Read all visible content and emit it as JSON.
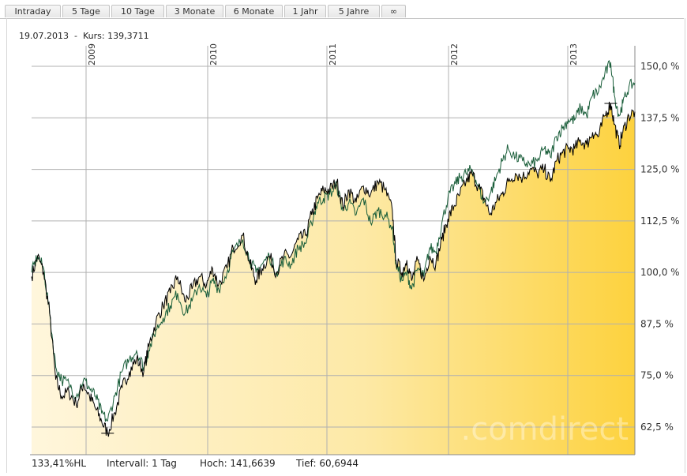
{
  "tabs": [
    {
      "label": "Intraday"
    },
    {
      "label": "5 Tage"
    },
    {
      "label": "10 Tage"
    },
    {
      "label": "3 Monate"
    },
    {
      "label": "6 Monate"
    },
    {
      "label": "1 Jahr"
    },
    {
      "label": "5 Jahre"
    },
    {
      "label": "∞"
    }
  ],
  "header": {
    "date": "19.07.2013",
    "separator": "-",
    "kurs_label": "Kurs:",
    "kurs_value": "139,3711"
  },
  "footer": {
    "hl": "133,41%HL",
    "interval": "Intervall: 1 Tag",
    "hoch": "Hoch: 141,6639",
    "tief": "Tief: 60,6944"
  },
  "watermark": ".comdirect",
  "colors": {
    "main_line": "#000000",
    "compare_line": "#1a5e3a",
    "fill_light": "#fff6dc",
    "fill_dark": "#fdd23e",
    "grid": "#b0b0b0"
  },
  "chart_data": {
    "type": "area",
    "x_axis_labels": [
      "2009",
      "2010",
      "2011",
      "2012",
      "2013"
    ],
    "y_axis_labels": [
      "62,5 %",
      "75,0 %",
      "87,5 %",
      "100,0 %",
      "112,5 %",
      "125,0 %",
      "137,5 %",
      "150,0 %"
    ],
    "ylim": [
      57,
      153
    ],
    "xlim": [
      2008.55,
      2013.55
    ],
    "y_unit": "%",
    "series": [
      {
        "role": "main",
        "points": [
          [
            2008.55,
            99
          ],
          [
            2008.6,
            104
          ],
          [
            2008.65,
            100
          ],
          [
            2008.7,
            90
          ],
          [
            2008.75,
            74
          ],
          [
            2008.8,
            70
          ],
          [
            2008.86,
            71
          ],
          [
            2008.92,
            68
          ],
          [
            2008.98,
            73
          ],
          [
            2009.03,
            70
          ],
          [
            2009.08,
            67
          ],
          [
            2009.13,
            64
          ],
          [
            2009.18,
            61
          ],
          [
            2009.24,
            66
          ],
          [
            2009.3,
            72
          ],
          [
            2009.36,
            76
          ],
          [
            2009.42,
            79
          ],
          [
            2009.48,
            76
          ],
          [
            2009.52,
            82
          ],
          [
            2009.58,
            88
          ],
          [
            2009.64,
            92
          ],
          [
            2009.7,
            95
          ],
          [
            2009.76,
            99
          ],
          [
            2009.82,
            93
          ],
          [
            2009.88,
            96
          ],
          [
            2009.94,
            99
          ],
          [
            2010.0,
            97
          ],
          [
            2010.05,
            101
          ],
          [
            2010.1,
            97
          ],
          [
            2010.17,
            101
          ],
          [
            2010.22,
            106
          ],
          [
            2010.3,
            109
          ],
          [
            2010.36,
            102
          ],
          [
            2010.41,
            98
          ],
          [
            2010.46,
            101
          ],
          [
            2010.52,
            104
          ],
          [
            2010.58,
            100
          ],
          [
            2010.64,
            104
          ],
          [
            2010.7,
            104
          ],
          [
            2010.76,
            108
          ],
          [
            2010.82,
            109
          ],
          [
            2010.87,
            114
          ],
          [
            2010.92,
            118
          ],
          [
            2010.97,
            120
          ],
          [
            2011.02,
            120
          ],
          [
            2011.08,
            122
          ],
          [
            2011.13,
            116
          ],
          [
            2011.18,
            120
          ],
          [
            2011.24,
            117
          ],
          [
            2011.3,
            121
          ],
          [
            2011.36,
            119
          ],
          [
            2011.42,
            122
          ],
          [
            2011.48,
            120
          ],
          [
            2011.54,
            115
          ],
          [
            2011.57,
            103
          ],
          [
            2011.62,
            100
          ],
          [
            2011.66,
            103
          ],
          [
            2011.7,
            98
          ],
          [
            2011.75,
            103
          ],
          [
            2011.8,
            98
          ],
          [
            2011.85,
            104
          ],
          [
            2011.9,
            102
          ],
          [
            2011.95,
            108
          ],
          [
            2012.0,
            113
          ],
          [
            2012.05,
            116
          ],
          [
            2012.1,
            119
          ],
          [
            2012.15,
            122
          ],
          [
            2012.2,
            124
          ],
          [
            2012.25,
            121
          ],
          [
            2012.3,
            118
          ],
          [
            2012.35,
            114
          ],
          [
            2012.4,
            117
          ],
          [
            2012.45,
            119
          ],
          [
            2012.5,
            122
          ],
          [
            2012.56,
            124
          ],
          [
            2012.62,
            123
          ],
          [
            2012.68,
            125
          ],
          [
            2012.74,
            124
          ],
          [
            2012.8,
            125
          ],
          [
            2012.85,
            122
          ],
          [
            2012.9,
            127
          ],
          [
            2012.95,
            129
          ],
          [
            2013.0,
            130
          ],
          [
            2013.05,
            130
          ],
          [
            2013.1,
            132
          ],
          [
            2013.15,
            131
          ],
          [
            2013.2,
            134
          ],
          [
            2013.25,
            133
          ],
          [
            2013.3,
            138
          ],
          [
            2013.35,
            141
          ],
          [
            2013.38,
            136
          ],
          [
            2013.42,
            131
          ],
          [
            2013.45,
            134
          ],
          [
            2013.5,
            138
          ],
          [
            2013.55,
            139
          ]
        ]
      },
      {
        "role": "comparison",
        "points": [
          [
            2008.55,
            100
          ],
          [
            2008.6,
            104
          ],
          [
            2008.65,
            101
          ],
          [
            2008.7,
            90
          ],
          [
            2008.75,
            77
          ],
          [
            2008.8,
            74
          ],
          [
            2008.86,
            73
          ],
          [
            2008.92,
            70
          ],
          [
            2008.98,
            74
          ],
          [
            2009.03,
            72
          ],
          [
            2009.08,
            70
          ],
          [
            2009.13,
            66
          ],
          [
            2009.18,
            64
          ],
          [
            2009.24,
            70
          ],
          [
            2009.3,
            76
          ],
          [
            2009.36,
            79
          ],
          [
            2009.42,
            81
          ],
          [
            2009.48,
            77
          ],
          [
            2009.52,
            81
          ],
          [
            2009.58,
            86
          ],
          [
            2009.64,
            89
          ],
          [
            2009.7,
            92
          ],
          [
            2009.76,
            95
          ],
          [
            2009.82,
            90
          ],
          [
            2009.88,
            93
          ],
          [
            2009.94,
            97
          ],
          [
            2010.0,
            94
          ],
          [
            2010.05,
            98
          ],
          [
            2010.1,
            96
          ],
          [
            2010.17,
            100
          ],
          [
            2010.22,
            105
          ],
          [
            2010.3,
            108
          ],
          [
            2010.36,
            103
          ],
          [
            2010.41,
            100
          ],
          [
            2010.46,
            102
          ],
          [
            2010.52,
            104
          ],
          [
            2010.58,
            100
          ],
          [
            2010.64,
            103
          ],
          [
            2010.7,
            102
          ],
          [
            2010.76,
            106
          ],
          [
            2010.82,
            107
          ],
          [
            2010.87,
            112
          ],
          [
            2010.92,
            117
          ],
          [
            2010.97,
            118
          ],
          [
            2011.02,
            119
          ],
          [
            2011.08,
            121
          ],
          [
            2011.13,
            115
          ],
          [
            2011.18,
            117
          ],
          [
            2011.24,
            114
          ],
          [
            2011.3,
            118
          ],
          [
            2011.36,
            112
          ],
          [
            2011.42,
            115
          ],
          [
            2011.48,
            114
          ],
          [
            2011.54,
            111
          ],
          [
            2011.57,
            102
          ],
          [
            2011.62,
            98
          ],
          [
            2011.66,
            100
          ],
          [
            2011.7,
            96
          ],
          [
            2011.75,
            101
          ],
          [
            2011.8,
            99
          ],
          [
            2011.85,
            106
          ],
          [
            2011.9,
            105
          ],
          [
            2011.95,
            112
          ],
          [
            2012.0,
            118
          ],
          [
            2012.05,
            121
          ],
          [
            2012.1,
            123
          ],
          [
            2012.15,
            124
          ],
          [
            2012.2,
            125
          ],
          [
            2012.25,
            121
          ],
          [
            2012.3,
            117
          ],
          [
            2012.35,
            119
          ],
          [
            2012.4,
            123
          ],
          [
            2012.45,
            127
          ],
          [
            2012.5,
            130
          ],
          [
            2012.56,
            128
          ],
          [
            2012.62,
            127
          ],
          [
            2012.68,
            126
          ],
          [
            2012.74,
            127
          ],
          [
            2012.8,
            130
          ],
          [
            2012.85,
            128
          ],
          [
            2012.9,
            133
          ],
          [
            2012.95,
            135
          ],
          [
            2013.0,
            137
          ],
          [
            2013.05,
            137
          ],
          [
            2013.1,
            140
          ],
          [
            2013.15,
            138
          ],
          [
            2013.2,
            143
          ],
          [
            2013.25,
            144
          ],
          [
            2013.3,
            148
          ],
          [
            2013.35,
            151
          ],
          [
            2013.38,
            143
          ],
          [
            2013.42,
            138
          ],
          [
            2013.45,
            141
          ],
          [
            2013.5,
            145
          ],
          [
            2013.55,
            146
          ]
        ]
      }
    ],
    "grid": true
  }
}
